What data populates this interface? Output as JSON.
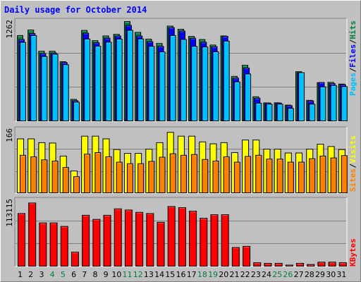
{
  "title": "Daily usage for October 2014",
  "colors": {
    "pages": "#00c0ff",
    "files": "#0000ff",
    "hits": "#008040",
    "visits": "#ffff00",
    "sites": "#ff8000",
    "kbytes": "#ff0000",
    "weekend_label": "#008040",
    "weekday_label": "#000000"
  },
  "chart_data": [
    {
      "type": "bar",
      "panel": "hits-files-pages",
      "ymax_label": "1262",
      "ylim": [
        0,
        1262
      ],
      "legend": [
        "Pages",
        "Files",
        "Hits"
      ],
      "categories": [
        "1",
        "2",
        "3",
        "4",
        "5",
        "6",
        "7",
        "8",
        "9",
        "10",
        "11",
        "12",
        "13",
        "14",
        "15",
        "16",
        "17",
        "18",
        "19",
        "20",
        "21",
        "22",
        "23",
        "24",
        "25",
        "26",
        "27",
        "28",
        "29",
        "30",
        "31"
      ],
      "weekend": [
        false,
        false,
        false,
        true,
        true,
        false,
        false,
        false,
        false,
        false,
        true,
        true,
        false,
        false,
        false,
        false,
        false,
        true,
        true,
        false,
        false,
        false,
        false,
        false,
        true,
        true,
        false,
        false,
        false,
        false,
        false
      ],
      "series": [
        {
          "name": "Hits",
          "values": [
            1085,
            1155,
            887,
            887,
            755,
            280,
            1150,
            1020,
            1080,
            1100,
            1262,
            1125,
            1040,
            985,
            1204,
            1164,
            1074,
            1035,
            965,
            1080,
            570,
            710,
            313,
            236,
            237,
            208,
            629,
            268,
            491,
            495,
            473
          ]
        },
        {
          "name": "Files",
          "values": [
            1035,
            1111,
            857,
            865,
            744,
            264,
            1115,
            993,
            1051,
            1080,
            1213,
            1079,
            1007,
            949,
            1185,
            1142,
            1051,
            1000,
            944,
            1075,
            548,
            675,
            295,
            234,
            233,
            201,
            617,
            261,
            493,
            480,
            465
          ]
        },
        {
          "name": "Pages",
          "values": [
            998,
            1085,
            820,
            849,
            717,
            245,
            1040,
            950,
            1001,
            1040,
            1151,
            1042,
            948,
            878,
            1085,
            1035,
            948,
            940,
            880,
            1014,
            500,
            600,
            232,
            219,
            219,
            166,
            617,
            219,
            437,
            456,
            441
          ]
        }
      ]
    },
    {
      "type": "bar",
      "panel": "visits-sites",
      "ymax_label": "166",
      "ylim": [
        0,
        166
      ],
      "legend": [
        "Sites",
        "Visits"
      ],
      "categories": [
        "1",
        "2",
        "3",
        "4",
        "5",
        "6",
        "7",
        "8",
        "9",
        "10",
        "11",
        "12",
        "13",
        "14",
        "15",
        "16",
        "17",
        "18",
        "19",
        "20",
        "21",
        "22",
        "23",
        "24",
        "25",
        "26",
        "27",
        "28",
        "29",
        "30",
        "31"
      ],
      "series": [
        {
          "name": "Visits",
          "values": [
            143,
            143,
            133,
            132,
            98,
            59,
            150,
            150,
            143,
            115,
            105,
            105,
            116,
            133,
            160,
            150,
            150,
            135,
            130,
            133,
            107,
            140,
            140,
            116,
            116,
            106,
            106,
            116,
            129,
            123,
            115
          ]
        },
        {
          "name": "Sites",
          "values": [
            100,
            96,
            88,
            85,
            68,
            44,
            103,
            107,
            96,
            82,
            78,
            78,
            84,
            95,
            104,
            100,
            102,
            89,
            85,
            96,
            82,
            97,
            100,
            90,
            90,
            82,
            82,
            91,
            98,
            93,
            99
          ]
        }
      ]
    },
    {
      "type": "bar",
      "panel": "kbytes",
      "ymax_label": "113115",
      "ylim": [
        0,
        113115
      ],
      "legend": [
        "KBytes"
      ],
      "categories": [
        "1",
        "2",
        "3",
        "4",
        "5",
        "6",
        "7",
        "8",
        "9",
        "10",
        "11",
        "12",
        "13",
        "14",
        "15",
        "16",
        "17",
        "18",
        "19",
        "20",
        "21",
        "22",
        "23",
        "24",
        "25",
        "26",
        "27",
        "28",
        "29",
        "30",
        "31"
      ],
      "series": [
        {
          "name": "KBytes",
          "values": [
            91000,
            109000,
            75000,
            75000,
            69000,
            25000,
            88000,
            81000,
            88000,
            99000,
            97000,
            93000,
            91000,
            76000,
            103000,
            101000,
            95000,
            83000,
            89000,
            89000,
            33000,
            35000,
            7000,
            6000,
            6000,
            3000,
            6000,
            4000,
            8000,
            8000,
            7000
          ]
        }
      ]
    }
  ]
}
